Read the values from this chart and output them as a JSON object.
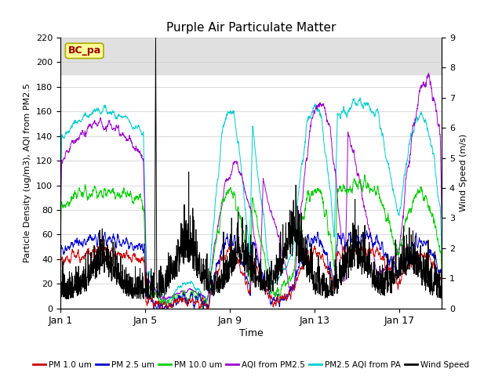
{
  "title": "Purple Air Particulate Matter",
  "xlabel": "Time",
  "ylabel_left": "Particle Density (ug/m3), AQI from PM2.5",
  "ylabel_right": "Wind Speed (m/s)",
  "annotation": "BC_pa",
  "ylim_left": [
    0,
    220
  ],
  "ylim_right": [
    0.0,
    9.0
  ],
  "yticks_left": [
    0,
    20,
    40,
    60,
    80,
    100,
    120,
    140,
    160,
    180,
    200,
    220
  ],
  "yticks_right": [
    0.0,
    1.0,
    2.0,
    3.0,
    4.0,
    5.0,
    6.0,
    7.0,
    8.0,
    9.0
  ],
  "xtick_labels": [
    "Jan 1",
    "Jan 5",
    "Jan 9",
    "Jan 13",
    "Jan 17"
  ],
  "xtick_positions": [
    0,
    4,
    8,
    12,
    16
  ],
  "n_days": 18,
  "n_points": 1800,
  "shade_ymin": 190,
  "shade_ymax": 220,
  "colors": {
    "pm1": "#cc0000",
    "pm25": "#0000cc",
    "pm10": "#00cc00",
    "aqi_pm25": "#9900cc",
    "aqi_pa": "#00cccc",
    "wind": "#000000"
  },
  "legend": [
    {
      "label": "PM 1.0 um",
      "color": "#cc0000"
    },
    {
      "label": "PM 2.5 um",
      "color": "#0000cc"
    },
    {
      "label": "PM 10.0 um",
      "color": "#00cc00"
    },
    {
      "label": "AQI from PM2.5",
      "color": "#9900cc"
    },
    {
      "label": "PM2.5 AQI from PA",
      "color": "#00cccc"
    },
    {
      "label": "Wind Speed",
      "color": "#000000"
    }
  ],
  "background_color": "#ffffff",
  "shade_color": "#e0e0e0"
}
